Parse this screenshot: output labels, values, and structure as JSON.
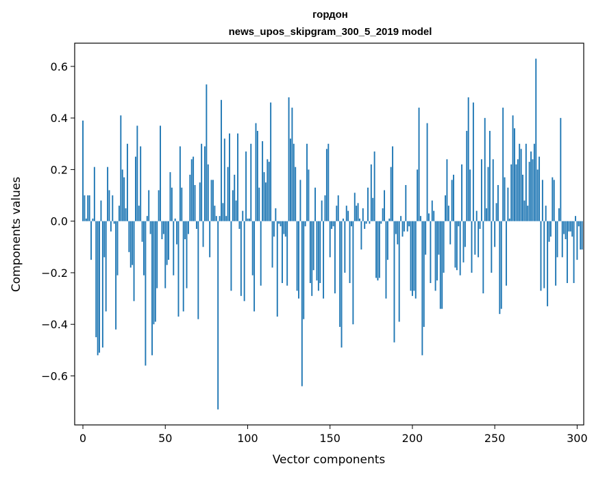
{
  "chart_data": {
    "type": "bar",
    "title": "гордон",
    "subtitle": "news_upos_skipgram_300_5_2019 model",
    "xlabel": "Vector components",
    "ylabel": "Components values",
    "xlim": [
      -5,
      304
    ],
    "ylim": [
      -0.79,
      0.69
    ],
    "xticks": [
      0,
      50,
      100,
      150,
      200,
      250,
      300
    ],
    "yticks": [
      -0.6,
      -0.4,
      -0.2,
      0.0,
      0.2,
      0.4,
      0.6
    ],
    "xtick_labels": [
      "0",
      "50",
      "100",
      "150",
      "200",
      "250",
      "300"
    ],
    "ytick_labels": [
      "−0.6",
      "−0.4",
      "−0.2",
      "0.0",
      "0.2",
      "0.4",
      "0.6"
    ],
    "grid": false,
    "legend": "none",
    "bar_color": "#1f77b4",
    "values": [
      0.39,
      0.1,
      0.01,
      0.1,
      0.1,
      -0.15,
      0.01,
      0.21,
      -0.45,
      -0.52,
      -0.51,
      0.08,
      -0.49,
      -0.14,
      -0.35,
      0.21,
      0.12,
      -0.04,
      0.1,
      -0.01,
      -0.42,
      -0.21,
      0.06,
      0.41,
      0.2,
      0.17,
      0.05,
      0.3,
      -0.12,
      -0.18,
      -0.17,
      -0.31,
      0.25,
      0.37,
      0.06,
      0.29,
      -0.08,
      -0.21,
      -0.56,
      0.02,
      0.12,
      -0.05,
      -0.52,
      -0.4,
      -0.39,
      -0.26,
      0.12,
      0.37,
      -0.07,
      -0.05,
      -0.26,
      -0.17,
      -0.15,
      0.19,
      0.13,
      -0.21,
      0.01,
      -0.09,
      -0.37,
      0.29,
      0.13,
      -0.35,
      -0.07,
      -0.26,
      -0.05,
      0.18,
      0.24,
      0.25,
      0.14,
      -0.03,
      -0.38,
      0.15,
      0.3,
      -0.1,
      0.29,
      0.53,
      0.22,
      -0.14,
      0.16,
      0.16,
      0.06,
      0.02,
      -0.73,
      0.02,
      0.47,
      0.07,
      0.32,
      0.02,
      0.21,
      0.34,
      -0.27,
      0.12,
      0.18,
      0.08,
      0.34,
      -0.03,
      -0.29,
      0.04,
      -0.31,
      0.27,
      0.01,
      0.01,
      0.3,
      -0.21,
      -0.35,
      0.38,
      0.35,
      0.13,
      -0.25,
      0.31,
      0.19,
      0.15,
      0.24,
      0.23,
      0.46,
      -0.18,
      -0.06,
      0.05,
      -0.37,
      -0.01,
      -0.02,
      -0.24,
      -0.05,
      -0.06,
      -0.25,
      0.48,
      0.32,
      0.44,
      0.3,
      0.21,
      -0.27,
      -0.3,
      0.16,
      -0.64,
      -0.38,
      -0.02,
      0.3,
      0.2,
      -0.24,
      -0.29,
      -0.19,
      0.13,
      -0.23,
      -0.27,
      -0.24,
      0.08,
      -0.3,
      0.1,
      0.28,
      0.3,
      -0.14,
      -0.03,
      -0.02,
      -0.28,
      0.06,
      0.1,
      -0.41,
      -0.49,
      0.01,
      -0.2,
      0.06,
      0.04,
      -0.24,
      -0.02,
      -0.4,
      0.11,
      0.06,
      0.07,
      0.01,
      -0.11,
      0.05,
      -0.03,
      -0.01,
      0.13,
      -0.01,
      0.22,
      0.09,
      0.27,
      -0.22,
      -0.23,
      -0.22,
      -0.01,
      0.05,
      0.12,
      -0.3,
      -0.15,
      0.01,
      0.21,
      0.29,
      -0.47,
      -0.05,
      -0.09,
      -0.39,
      0.02,
      -0.06,
      -0.04,
      0.14,
      -0.04,
      -0.02,
      -0.27,
      -0.29,
      -0.27,
      -0.3,
      0.2,
      0.44,
      0.02,
      -0.52,
      -0.41,
      -0.13,
      0.38,
      0.03,
      -0.24,
      0.08,
      0.04,
      -0.27,
      -0.23,
      -0.13,
      -0.34,
      -0.34,
      -0.2,
      0.1,
      0.24,
      0.06,
      -0.09,
      0.16,
      0.18,
      -0.18,
      -0.19,
      -0.02,
      -0.21,
      0.22,
      -0.16,
      -0.1,
      0.35,
      0.48,
      0.2,
      -0.2,
      0.46,
      -0.13,
      0.04,
      -0.14,
      -0.03,
      0.24,
      -0.28,
      0.4,
      0.05,
      0.21,
      0.35,
      -0.2,
      0.24,
      -0.1,
      0.07,
      0.14,
      -0.36,
      -0.34,
      0.44,
      0.17,
      -0.25,
      0.13,
      0.01,
      0.22,
      0.41,
      0.36,
      0.22,
      0.24,
      0.3,
      0.28,
      0.18,
      0.08,
      0.3,
      0.06,
      0.23,
      0.27,
      0.24,
      0.3,
      0.63,
      0.2,
      0.25,
      -0.27,
      0.16,
      -0.26,
      0.06,
      -0.33,
      -0.08,
      -0.06,
      0.17,
      0.16,
      -0.25,
      -0.14,
      0.05,
      0.4,
      -0.14,
      -0.05,
      -0.07,
      -0.24,
      -0.04,
      -0.04,
      -0.06,
      -0.24,
      0.02,
      -0.15,
      -0.02,
      -0.11,
      -0.11
    ]
  }
}
